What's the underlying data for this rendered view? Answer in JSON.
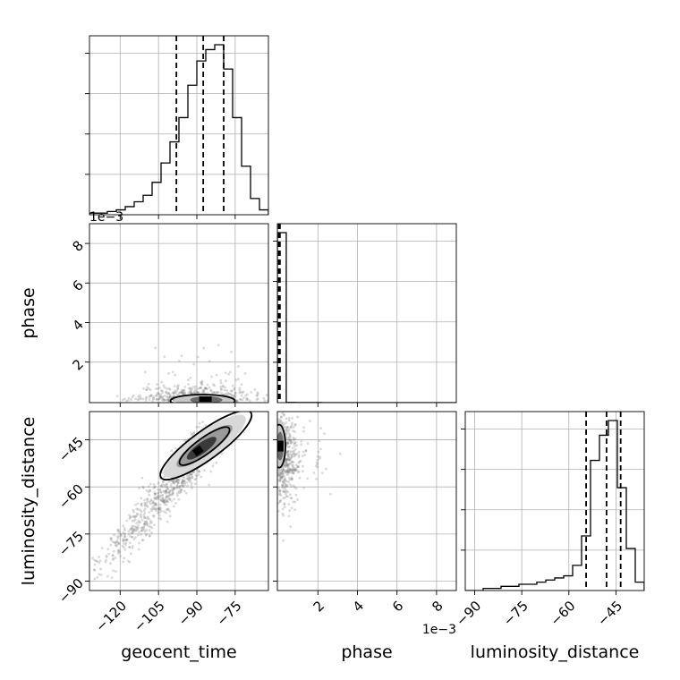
{
  "chart_data": {
    "type": "corner",
    "parameters": [
      "geocent_time",
      "phase",
      "luminosity_distance"
    ],
    "grid": true,
    "axes": {
      "geocent_time": {
        "range": [
          -132,
          -62
        ],
        "ticks": [
          -120,
          -105,
          -90,
          -75
        ],
        "tick_labels": [
          "−120",
          "−105",
          "−90",
          "−75"
        ]
      },
      "phase": {
        "range": [
          -5e-05,
          0.009
        ],
        "ticks": [
          0.002,
          0.004,
          0.006,
          0.008
        ],
        "tick_labels": [
          "2",
          "4",
          "6",
          "8"
        ],
        "offset_label": "1e−3"
      },
      "luminosity_distance": {
        "range": [
          -93,
          -36
        ],
        "ticks": [
          -90,
          -75,
          -60,
          -45
        ],
        "tick_labels": [
          "−90",
          "−75",
          "−60",
          "−45"
        ]
      }
    },
    "histograms": [
      {
        "parameter": "geocent_time",
        "bin_edges": [
          -132,
          -128.5,
          -125,
          -121.5,
          -118,
          -114.5,
          -111,
          -107.5,
          -104,
          -100.5,
          -97,
          -93.5,
          -90,
          -86.5,
          -83,
          -79.5,
          -76,
          -72.5,
          -69,
          -65.5,
          -62
        ],
        "counts": [
          1,
          1,
          2,
          3,
          5,
          8,
          12,
          20,
          32,
          45,
          60,
          80,
          95,
          102,
          105,
          90,
          60,
          30,
          10,
          3
        ],
        "quantiles": [
          -98,
          -87.5,
          -79.5
        ]
      },
      {
        "parameter": "phase",
        "bin_edges": [
          -5e-05,
          0.0004,
          0.00085,
          0.0013,
          0.00175,
          0.0022,
          0.00265,
          0.0031,
          0.00355,
          0.004,
          0.00445,
          0.0049,
          0.00535,
          0.0058,
          0.00625,
          0.0067,
          0.00715,
          0.0076,
          0.00805,
          0.0085,
          0.009
        ],
        "counts": [
          1000,
          1,
          0.5,
          0.3,
          0.2,
          0.1,
          0.1,
          0.05,
          0,
          0,
          0,
          0,
          0,
          0,
          0,
          0,
          0,
          0,
          0,
          0
        ],
        "quantiles": [
          2e-05,
          5e-05,
          8e-05
        ]
      },
      {
        "parameter": "luminosity_distance",
        "bin_edges": [
          -93,
          -90.15,
          -87.3,
          -84.45,
          -81.6,
          -78.75,
          -75.9,
          -73.05,
          -70.2,
          -67.35,
          -64.5,
          -61.65,
          -58.8,
          -55.95,
          -53.1,
          -50.25,
          -47.4,
          -44.55,
          -41.7,
          -38.85,
          -36
        ],
        "counts": [
          0,
          0,
          1,
          1,
          2,
          2,
          3,
          3,
          4,
          5,
          6,
          7,
          12,
          26,
          62,
          74,
          81,
          49,
          20,
          4
        ],
        "quantiles": [
          -54.5,
          -48,
          -43.5
        ]
      }
    ],
    "density_panels": [
      {
        "x": "geocent_time",
        "y": "phase",
        "density_center": [
          -87,
          0.0003
        ],
        "max_scatter_y": 0.0035
      },
      {
        "x": "geocent_time",
        "y": "luminosity_distance",
        "density_center": [
          -87,
          -47
        ],
        "correlation": "positive",
        "scatter_x_range": [
          -131,
          -65
        ],
        "scatter_y_range": [
          -90,
          -41
        ]
      },
      {
        "x": "phase",
        "y": "luminosity_distance",
        "density_center": [
          0.0001,
          -47
        ],
        "max_scatter_x": 0.0034
      }
    ]
  }
}
